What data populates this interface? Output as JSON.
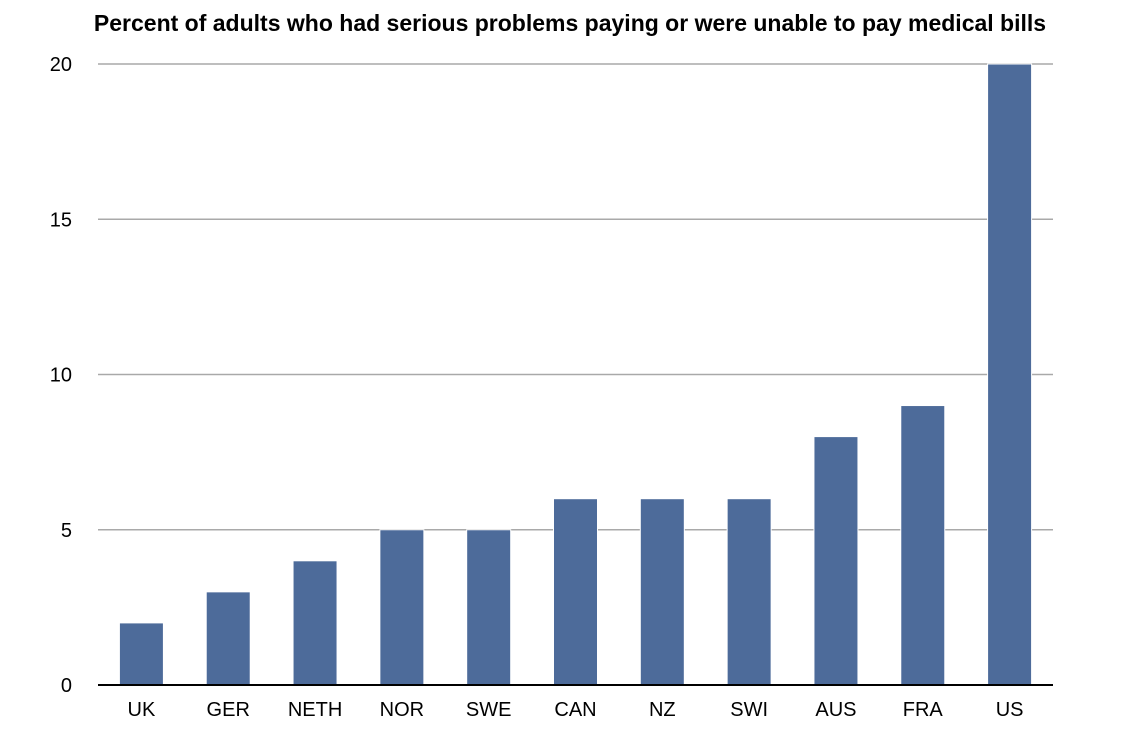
{
  "chart_data": {
    "type": "bar",
    "title": "Percent of adults who had serious problems paying or were unable to pay medical bills",
    "xlabel": "",
    "ylabel": "",
    "categories": [
      "UK",
      "GER",
      "NETH",
      "NOR",
      "SWE",
      "CAN",
      "NZ",
      "SWI",
      "AUS",
      "FRA",
      "US"
    ],
    "values": [
      2,
      3,
      4,
      5,
      5,
      6,
      6,
      6,
      8,
      9,
      20
    ],
    "ylim": [
      0,
      20
    ],
    "yticks": [
      "0",
      "5",
      "10",
      "15",
      "20"
    ],
    "grid": true,
    "legend": "none",
    "colors": {
      "bar": "#4d6b9a",
      "grid": "#a9a9a9",
      "axis": "#000000"
    }
  }
}
